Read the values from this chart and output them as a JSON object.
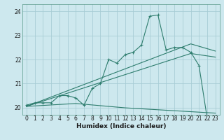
{
  "xlabel": "Humidex (Indice chaleur)",
  "bg_color": "#cde8ee",
  "grid_color": "#a8cdd5",
  "line_color": "#2e7d6e",
  "xlim": [
    -0.5,
    23.5
  ],
  "ylim": [
    19.7,
    24.3
  ],
  "yticks": [
    20,
    21,
    22,
    23,
    24
  ],
  "xticks": [
    0,
    1,
    2,
    3,
    4,
    5,
    6,
    7,
    8,
    9,
    10,
    11,
    12,
    13,
    14,
    15,
    16,
    17,
    18,
    19,
    20,
    21,
    22,
    23
  ],
  "x_data": [
    0,
    1,
    2,
    3,
    4,
    5,
    6,
    7,
    8,
    9,
    10,
    11,
    12,
    13,
    14,
    15,
    16,
    17,
    18,
    19,
    20,
    21,
    22,
    23
  ],
  "jagged_y": [
    20.1,
    20.2,
    20.2,
    20.2,
    20.5,
    20.5,
    20.4,
    20.1,
    20.8,
    21.0,
    22.0,
    21.85,
    22.2,
    22.3,
    22.6,
    23.8,
    23.85,
    22.4,
    22.5,
    22.5,
    22.3,
    21.75,
    19.55,
    19.55
  ],
  "line1_y": [
    20.05,
    20.18,
    20.31,
    20.44,
    20.57,
    20.7,
    20.83,
    20.96,
    21.09,
    21.22,
    21.35,
    21.48,
    21.61,
    21.74,
    21.87,
    22.0,
    22.13,
    22.26,
    22.39,
    22.52,
    22.65,
    22.55,
    22.45,
    22.35
  ],
  "line2_y": [
    20.05,
    20.16,
    20.27,
    20.38,
    20.49,
    20.6,
    20.71,
    20.82,
    20.93,
    21.04,
    21.15,
    21.26,
    21.37,
    21.48,
    21.59,
    21.7,
    21.81,
    21.92,
    22.03,
    22.14,
    22.25,
    22.2,
    22.15,
    22.1
  ],
  "line3_y": [
    20.05,
    20.07,
    20.09,
    20.11,
    20.13,
    20.15,
    20.17,
    20.14,
    20.11,
    20.08,
    20.05,
    20.02,
    19.99,
    19.97,
    19.95,
    19.93,
    19.91,
    19.89,
    19.87,
    19.85,
    19.83,
    19.81,
    19.79,
    19.77
  ]
}
